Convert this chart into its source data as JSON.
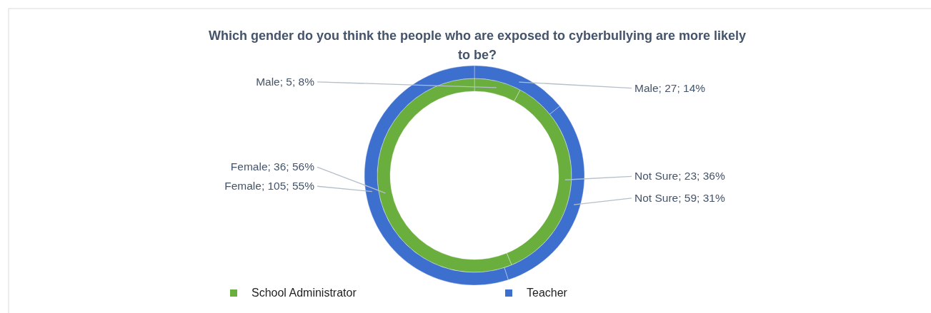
{
  "chart_data": {
    "type": "donut",
    "title": "Which gender do you think the people who are exposed to cyberbullying are more likely to be?",
    "categories": [
      "Male",
      "Not Sure",
      "Female"
    ],
    "series": [
      {
        "name": "School Administrator",
        "color": "#6aaf3e",
        "values": [
          5,
          23,
          36
        ],
        "value_labels": [
          "; 5; 8%",
          "; 23; 36%",
          "; 36; 56%"
        ]
      },
      {
        "name": "Teacher",
        "color": "#3d6fcf",
        "values": [
          27,
          59,
          105
        ],
        "value_labels": [
          "; 27; 14%",
          "; 59; 31%",
          "; 105; 55%"
        ]
      }
    ],
    "legend": "bottom"
  }
}
